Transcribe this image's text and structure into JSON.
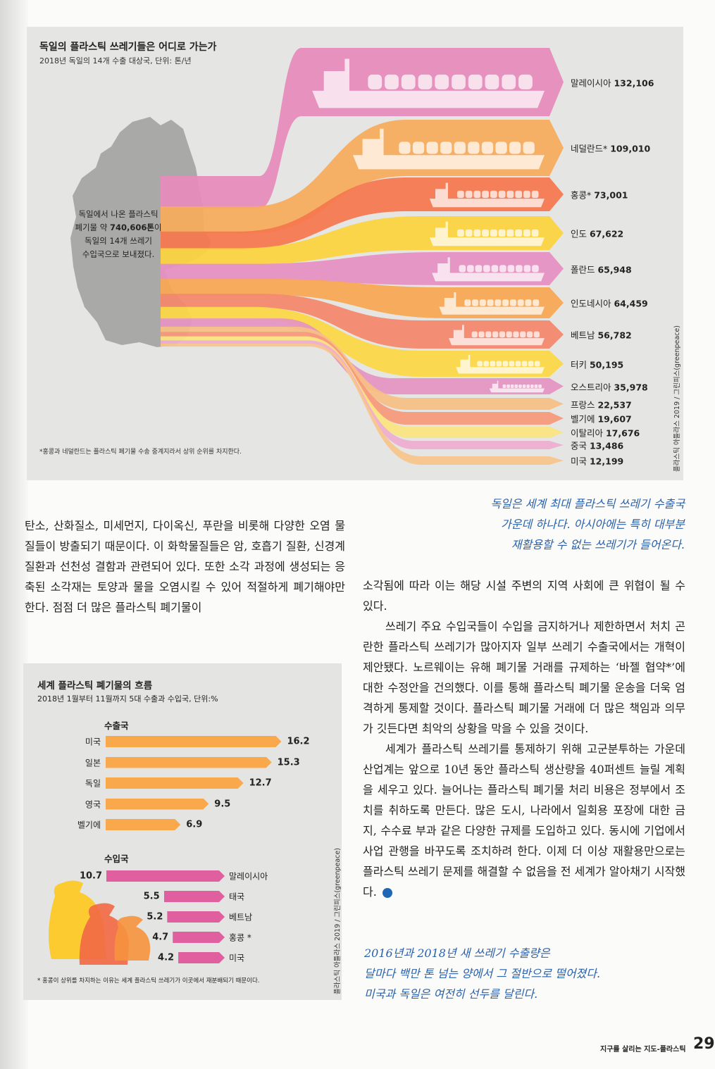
{
  "infographic": {
    "title": "독일의 플라스틱 쓰레기들은 어디로 가는가",
    "subtitle": "2018년 독일의 14개 수출 대상국, 단위: 톤/년",
    "germany_note": {
      "line1": "독일에서 나온 플라스틱",
      "line2_pre": "폐기물 약 ",
      "line2_bold": "740,606톤",
      "line2_post": "이",
      "line3": "독일의 14개 쓰레기",
      "line4": "수입국으로 보내졌다."
    },
    "footnote": "*홍콩과 네덜란드는 플라스틱 폐기물 수송 중계지라서 상위 순위를 차지한다.",
    "credit": "플라스틱 아틀라스 2019 / 그린피스(greenpeace)",
    "colors": [
      "#e68bbb",
      "#f8ac5c",
      "#f5774f",
      "#fcd43e",
      "#e690c2",
      "#f9a853",
      "#f4866a",
      "#fcd845",
      "#e593c3",
      "#f8bf85",
      "#f6997a",
      "#fbe480",
      "#eeaed0",
      "#f9c58c"
    ]
  },
  "chart_data": [
    {
      "type": "bar",
      "title": "독일의 플라스틱 쓰레기들은 어디로 가는가",
      "subtitle": "2018년 독일의 14개 수출 대상국, 단위: 톤/년",
      "categories": [
        "말레이시아",
        "네덜란드*",
        "홍콩*",
        "인도",
        "폴란드",
        "인도네시아",
        "베트남",
        "터키",
        "오스트리아",
        "프랑스",
        "벨기에",
        "이탈리아",
        "중국",
        "미국"
      ],
      "values": [
        132106,
        109010,
        73001,
        67622,
        65948,
        64459,
        56782,
        50195,
        35978,
        22537,
        19607,
        17676,
        13486,
        12199
      ],
      "value_labels": [
        "132,106",
        "109,010",
        "73,001",
        "67,622",
        "65,948",
        "64,459",
        "56,782",
        "50,195",
        "35,978",
        "22,537",
        "19,607",
        "17,676",
        "13,486",
        "12,199"
      ],
      "total": "740,606"
    },
    {
      "type": "bar",
      "title": "세계 플라스틱 폐기물의 흐름",
      "subtitle": "2018년 1월부터 11월까지 5대 수출과 수입국, 단위:%",
      "series": [
        {
          "name": "수출국",
          "categories": [
            "미국",
            "일본",
            "독일",
            "영국",
            "벨기에"
          ],
          "values": [
            16.2,
            15.3,
            12.7,
            9.5,
            6.9
          ],
          "color": "#f9a94b"
        },
        {
          "name": "수입국",
          "categories": [
            "말레이시아",
            "태국",
            "베트남",
            "홍콩 *",
            "미국"
          ],
          "values": [
            10.7,
            5.5,
            5.2,
            4.7,
            4.2
          ],
          "color": "#e0609f"
        }
      ],
      "footnote": "* 홍콩이 상위를 차지하는 이유는 세계 플라스틱 쓰레기가 이곳에서 재분배되기 때문이다.",
      "credit": "플라스틱 아틀라스 2019 / 그린피스(greenpeace)"
    }
  ],
  "article": {
    "left_col": "탄소, 산화질소, 미세먼지, 다이옥신, 푸란을 비롯해 다양한 오염 물질들이 방출되기 때문이다. 이 화학물질들은 암, 호흡기 질환, 신경계 질환과 선천성 결함과 관련되어 있다. 또한 소각 과정에 생성되는 응축된 소각재는 토양과 물을 오염시킬 수 있어 적절하게 폐기해야만 한다. 점점 더 많은 플라스틱 폐기물이",
    "quote1": [
      "독일은 세계 최대 플라스틱 쓰레기 수출국",
      "가운데 하나다. 아시아에는 특히 대부분",
      "재활용할 수 없는 쓰레기가 들어온다."
    ],
    "right_p1": "소각됨에 따라 이는 해당 시설 주변의 지역 사회에 큰 위협이 될 수 있다.",
    "right_p2": "쓰레기 주요 수입국들이 수입을 금지하거나 제한하면서 처치 곤란한 플라스틱 쓰레기가 많아지자 일부 쓰레기 수출국에서는 개혁이 제안됐다. 노르웨이는 유해 폐기물 거래를 규제하는 ‘바젤 협약*’에 대한 수정안을 건의했다. 이를 통해 플라스틱 폐기물 운송을 더욱 엄격하게 통제할 것이다. 플라스틱 폐기물 거래에 더 많은 책임과 의무가 깃든다면 최악의 상황을 막을 수 있을 것이다.",
    "right_p3": "세계가 플라스틱 쓰레기를 통제하기 위해 고군분투하는 가운데 산업계는 앞으로 10년 동안 플라스틱 생산량을 40퍼센트 늘릴 계획을 세우고 있다. 늘어나는 플라스틱 폐기물 처리 비용은 정부에서 조치를 취하도록 만든다. 많은 도시, 나라에서 일회용 포장에 대한 금지, 수수료 부과 같은 다양한 규제를 도입하고 있다. 동시에 기업에서 사업 관행을 바꾸도록 조치하려 한다. 이제 더 이상 재활용만으로는 플라스틱 쓰레기 문제를 해결할 수 없음을 전 세계가 알아채기 시작했다.",
    "quote2": [
      "2016년과 2018년 새 쓰레기 수출량은",
      "달마다 백만 톤 넘는 양에서 그 절반으로 떨어졌다.",
      "미국과 독일은 여전히 선두를 달린다."
    ]
  },
  "footer": {
    "section": "지구를 살리는 지도-플라스틱",
    "page": "29"
  }
}
